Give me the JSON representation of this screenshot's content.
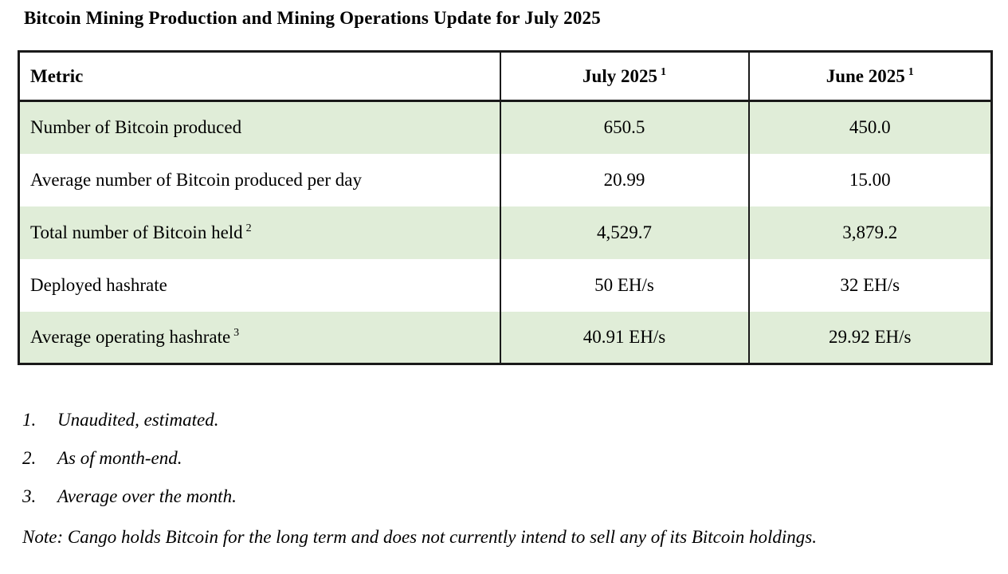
{
  "document": {
    "title": "Bitcoin Mining Production and Mining Operations Update for July 2025"
  },
  "table": {
    "headers": {
      "metric": {
        "label": "Metric",
        "sup": ""
      },
      "july": {
        "label": "July 2025",
        "sup": "1"
      },
      "june": {
        "label": "June 2025",
        "sup": "1"
      }
    },
    "rows": [
      {
        "metric": "Number of Bitcoin produced",
        "sup": "",
        "july": "650.5",
        "june": "450.0"
      },
      {
        "metric": "Average number of Bitcoin produced per day",
        "sup": "",
        "july": "20.99",
        "june": "15.00"
      },
      {
        "metric": "Total number of Bitcoin held",
        "sup": "2",
        "july": "4,529.7",
        "june": "3,879.2"
      },
      {
        "metric": "Deployed hashrate",
        "sup": "",
        "july": "50 EH/s",
        "june": "32 EH/s"
      },
      {
        "metric": "Average operating hashrate",
        "sup": "3",
        "july": "40.91 EH/s",
        "june": "29.92 EH/s"
      }
    ]
  },
  "footnotes": [
    {
      "number": "1.",
      "text": "Unaudited, estimated."
    },
    {
      "number": "2.",
      "text": "As of month-end."
    },
    {
      "number": "3.",
      "text": "Average over the month."
    }
  ],
  "note": "Note: Cango holds Bitcoin for the long term and does not currently intend to sell any of its Bitcoin holdings.",
  "colors": {
    "row_highlight": "#e0edd8",
    "border": "#1a1a1a",
    "text": "#000000",
    "background": "#ffffff"
  }
}
